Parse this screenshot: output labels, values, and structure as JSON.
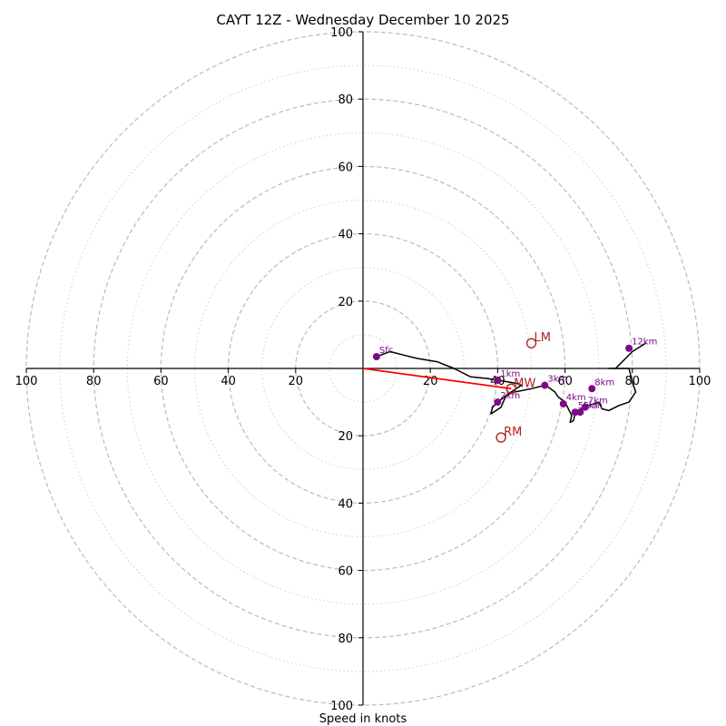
{
  "chart_data": {
    "type": "hodograph",
    "title": "CAYT 12Z - Wednesday December 10 2025",
    "xlabel": "Speed in knots",
    "range": [
      -100,
      100
    ],
    "ring_major": [
      20,
      40,
      60,
      80,
      100
    ],
    "ring_minor": [
      10,
      30,
      50,
      70,
      90
    ],
    "tick_values": [
      20,
      40,
      60,
      80,
      100
    ],
    "tick_labels": [
      "20",
      "40",
      "60",
      "80",
      "100"
    ],
    "wind_trace": [
      [
        4,
        3.5
      ],
      [
        8,
        5
      ],
      [
        12,
        4
      ],
      [
        16,
        3
      ],
      [
        22,
        2
      ],
      [
        27,
        0
      ],
      [
        32,
        -2.5
      ],
      [
        37,
        -3
      ],
      [
        40,
        -3.5
      ],
      [
        43,
        -4
      ],
      [
        46,
        -4.5
      ],
      [
        47,
        -5
      ],
      [
        44,
        -7
      ],
      [
        42,
        -8.5
      ],
      [
        40,
        -10
      ],
      [
        38.5,
        -11.5
      ],
      [
        38,
        -13.5
      ],
      [
        41,
        -11.5
      ],
      [
        42.5,
        -8
      ],
      [
        45,
        -7
      ],
      [
        50,
        -6
      ],
      [
        54,
        -5
      ],
      [
        55,
        -5.5
      ],
      [
        57,
        -7
      ],
      [
        58,
        -8.5
      ],
      [
        60,
        -10
      ],
      [
        61,
        -12
      ],
      [
        62,
        -14
      ],
      [
        61.5,
        -16
      ],
      [
        62.5,
        -15.5
      ],
      [
        63,
        -13.5
      ],
      [
        64,
        -12.5
      ],
      [
        65,
        -12
      ],
      [
        67,
        -11
      ],
      [
        70,
        -10
      ],
      [
        71,
        -12
      ],
      [
        73,
        -12.5
      ],
      [
        76,
        -11
      ],
      [
        79,
        -10
      ],
      [
        81,
        -7
      ],
      [
        80,
        -4
      ],
      [
        79,
        0
      ],
      [
        77,
        0
      ],
      [
        73,
        0
      ],
      [
        75,
        0
      ],
      [
        76,
        1
      ],
      [
        78,
        3
      ],
      [
        80,
        5
      ],
      [
        84,
        7.5
      ]
    ],
    "height_markers": [
      {
        "label": "Sfc",
        "u": 4,
        "v": 3.5
      },
      {
        "label": "1km",
        "u": 40,
        "v": -3.5
      },
      {
        "label": "2km",
        "u": 40,
        "v": -10
      },
      {
        "label": "3km",
        "u": 54,
        "v": -5
      },
      {
        "label": "4km",
        "u": 59.5,
        "v": -10.5
      },
      {
        "label": "5km",
        "u": 63,
        "v": -13
      },
      {
        "label": "6km",
        "u": 64.5,
        "v": -13
      },
      {
        "label": "7km",
        "u": 66,
        "v": -11.5
      },
      {
        "label": "8km",
        "u": 68,
        "v": -6
      },
      {
        "label": "12km",
        "u": 79,
        "v": 6
      }
    ],
    "storm_motions": [
      {
        "label": "LM",
        "u": 50,
        "v": 7.5
      },
      {
        "label": "MW",
        "u": 44,
        "v": -6
      },
      {
        "label": "RM",
        "u": 41,
        "v": -20.5
      }
    ],
    "shear_vector": {
      "from": [
        0,
        0
      ],
      "to": [
        44,
        -6
      ]
    },
    "colors": {
      "trace": "#000000",
      "marker": "#7b0a84",
      "storm": "#b22222",
      "shear": "#ff0000",
      "grid": "#bbbbbb",
      "axis": "#000000"
    }
  }
}
